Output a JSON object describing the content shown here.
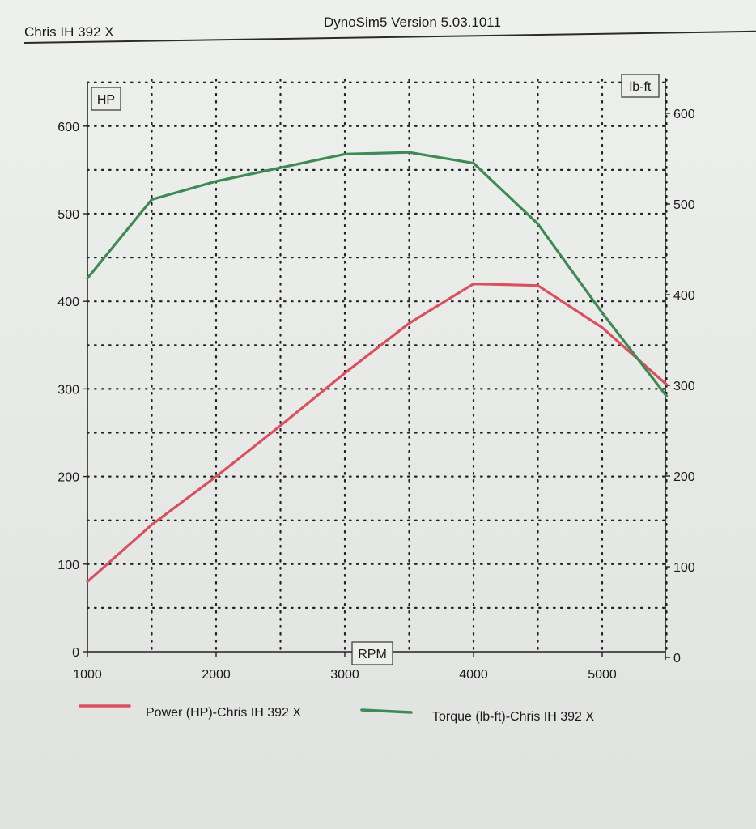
{
  "header": {
    "left_title": "Chris IH 392 X",
    "center_title": "DynoSim5  Version 5.03.1011"
  },
  "colors": {
    "power": "#d9505f",
    "torque": "#3d8a55",
    "grid": "#222222"
  },
  "chart_data": {
    "type": "line",
    "xlabel": "RPM",
    "ylabel_left": "HP",
    "ylabel_right": "lb-ft",
    "xlim": [
      1000,
      5500
    ],
    "ylim_left": [
      0,
      650
    ],
    "ylim_right": [
      0,
      650
    ],
    "x_ticks": [
      1000,
      2000,
      3000,
      4000,
      5000
    ],
    "y_ticks_left": [
      0,
      100,
      200,
      300,
      400,
      500,
      600
    ],
    "y_ticks_right": [
      0,
      100,
      200,
      300,
      400,
      500,
      600
    ],
    "grid": "dotted",
    "legend_position": "bottom",
    "series": [
      {
        "name": "Power (HP)-Chris IH 392 X",
        "axis": "left",
        "x": [
          1000,
          1500,
          2000,
          2500,
          3000,
          3500,
          4000,
          4500,
          5000,
          5500
        ],
        "y": [
          80,
          145,
          200,
          258,
          318,
          375,
          420,
          418,
          370,
          305
        ]
      },
      {
        "name": "Torque (lb-ft)-Chris IH 392 X",
        "axis": "right",
        "x": [
          1000,
          1500,
          2000,
          2500,
          3000,
          3500,
          4000,
          4500,
          5000,
          5500
        ],
        "y": [
          418,
          505,
          525,
          540,
          555,
          557,
          545,
          478,
          380,
          288
        ]
      }
    ]
  }
}
